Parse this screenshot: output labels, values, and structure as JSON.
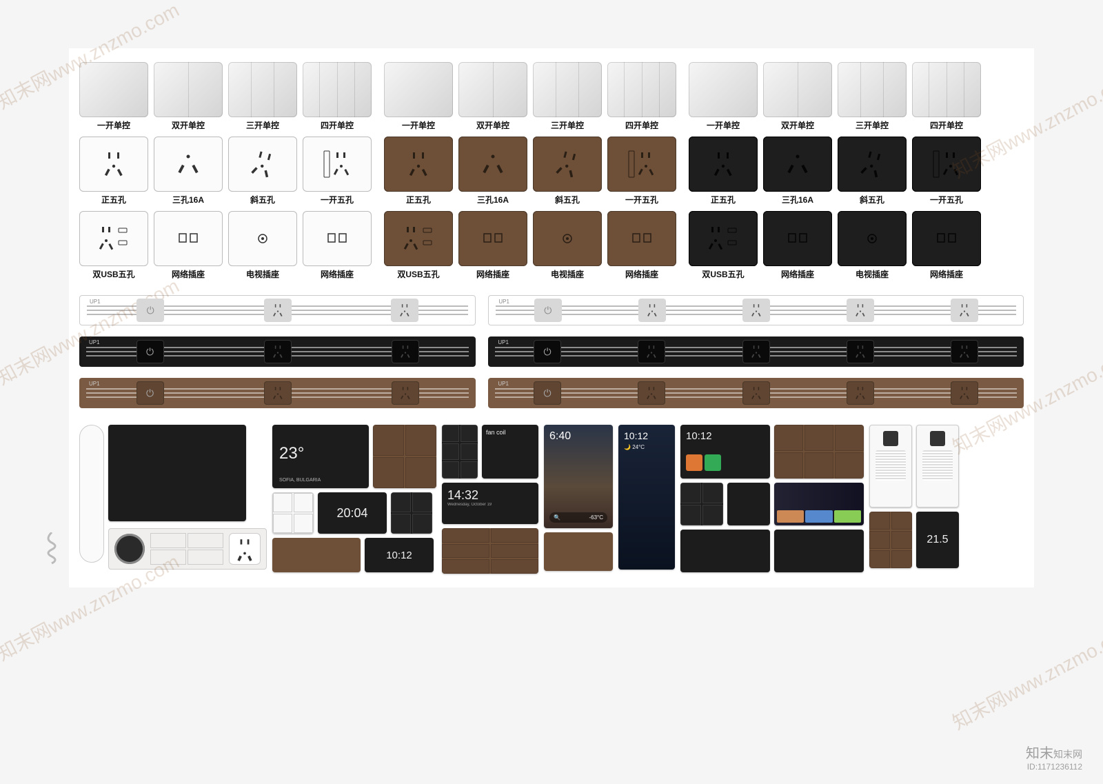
{
  "colors": {
    "silver": "#e3e3e3",
    "silver_edge": "#c9c9c9",
    "white": "#fbfbfb",
    "brown": "#6e4f38",
    "brown_dark": "#5a4130",
    "black": "#1e1e1e",
    "black_edge": "#0d0d0d",
    "strip_black": "#1a1a1a",
    "strip_brown": "#7a5a42"
  },
  "switch_labels": {
    "row1": [
      "一开单控",
      "双开单控",
      "三开单控",
      "四开单控"
    ],
    "row2": [
      "正五孔",
      "三孔16A",
      "斜五孔",
      "一开五孔"
    ],
    "row3": [
      "双USB五孔",
      "网络插座",
      "电视插座",
      "网络插座"
    ]
  },
  "color_groups": [
    "silver_white",
    "brown",
    "black"
  ],
  "strip_data": {
    "strip_label": "UP1",
    "short_modules": 3,
    "long_modules": 5
  },
  "smart_panels": {
    "weather": {
      "temp": "23°",
      "city": "SOFIA, BULGARIA"
    },
    "clock1": "20:04",
    "clock2": "14:32",
    "clock3": "10:12",
    "clock4": "6:40",
    "clock5": "10:12",
    "clock6": "10:12",
    "date": "Wednesday, October 19",
    "fan_label": "fan coil",
    "temp2": "-63°C",
    "temp3": "24°C",
    "thermo": "21.5"
  },
  "watermark": {
    "brand": "知末",
    "sub": "知末网",
    "id": "ID:1171236112",
    "diag": "知末网www.znzmo.com"
  }
}
